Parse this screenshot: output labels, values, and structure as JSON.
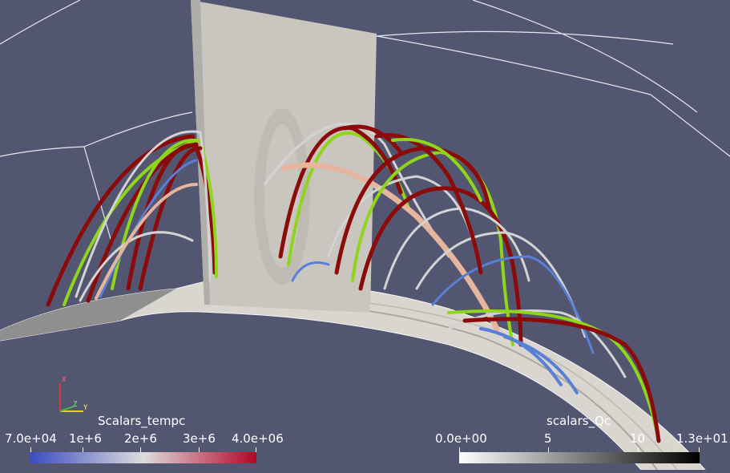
{
  "scene": {
    "tube_colors": {
      "dark_red": "#8b0a0a",
      "lime": "#8fd51a",
      "peach": "#e6b59d",
      "light_gray": "#d3d3d3",
      "blue": "#5a7fd6",
      "surface": "#dedbd3",
      "background": "#525671"
    }
  },
  "orientation_axes": {
    "x_label": "X",
    "y_label": "Y",
    "z_label": "Z",
    "x_color": "#d63a3a",
    "y_color": "#e6d21a",
    "z_color": "#3fbf3f"
  },
  "legend_tempc": {
    "title": "Scalars_tempc",
    "ticks": [
      "7.0e+04",
      "1e+6",
      "2e+6",
      "3e+6",
      "4.0e+06"
    ],
    "colors": [
      "#3b4cc0",
      "#dddddd",
      "#b40426"
    ]
  },
  "legend_qc": {
    "title": "scalars_Qc",
    "ticks": [
      "0.0e+00",
      "5",
      "10",
      "1.3e+01"
    ],
    "colors": [
      "#ffffff",
      "#000000"
    ]
  }
}
